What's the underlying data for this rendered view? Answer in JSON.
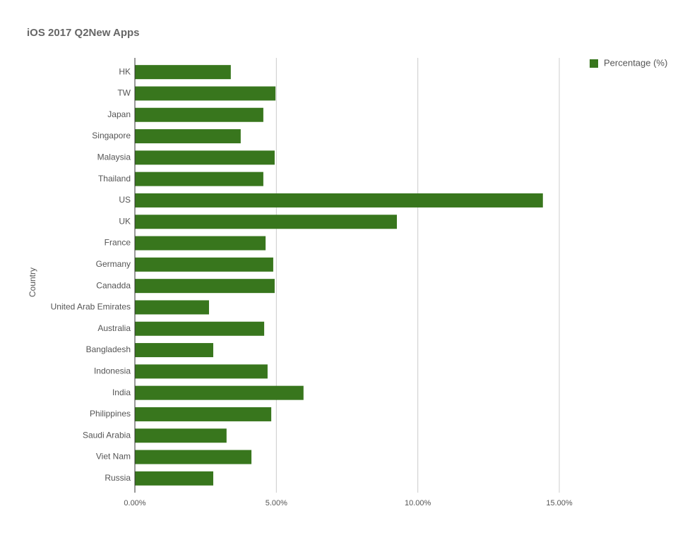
{
  "chart_data": {
    "type": "bar",
    "orientation": "horizontal",
    "title": "iOS 2017 Q2New Apps",
    "y_label": "Country",
    "categories": [
      "HK",
      "TW",
      "Japan",
      "Singapore",
      "Malaysia",
      "Thailand",
      "US",
      "UK",
      "France",
      "Germany",
      "Canadda",
      "United Arab Emirates",
      "Australia",
      "Bangladesh",
      "Indonesia",
      "India",
      "Philippines",
      "Saudi Arabia",
      "Viet Nam",
      "Russia"
    ],
    "series": [
      {
        "name": "Percentage (%)",
        "color": "#38761d",
        "values": [
          3.39,
          4.97,
          4.54,
          3.74,
          4.94,
          4.54,
          14.42,
          9.26,
          4.62,
          4.89,
          4.94,
          2.62,
          4.57,
          2.77,
          4.69,
          5.96,
          4.82,
          3.24,
          4.12,
          2.77
        ]
      }
    ],
    "xlim": [
      0,
      15
    ],
    "xticks": [
      {
        "value": 0,
        "label": "0.00%"
      },
      {
        "value": 5,
        "label": "5.00%"
      },
      {
        "value": 10,
        "label": "10.00%"
      },
      {
        "value": 15,
        "label": "15.00%"
      }
    ],
    "grid": true,
    "legend": "top-right"
  }
}
